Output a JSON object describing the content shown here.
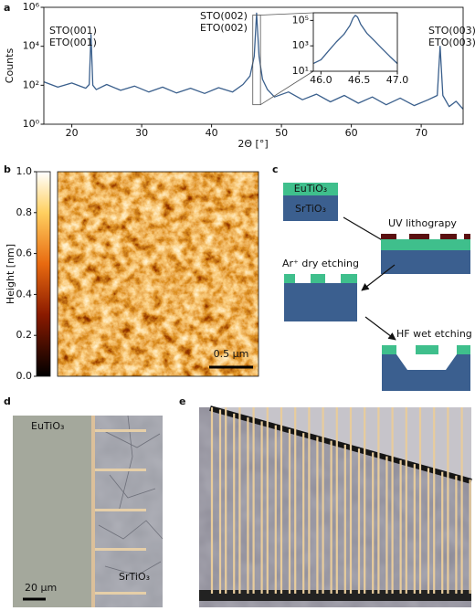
{
  "chart_data": [
    {
      "type": "line",
      "x_label": "2Θ [°]",
      "y_label": "Counts",
      "log_y": true,
      "color": "#3a5f8c",
      "x": [
        16,
        18,
        20,
        22,
        22.5,
        22.75,
        23,
        23.5,
        25,
        27,
        29,
        31,
        33,
        35,
        37,
        39,
        41,
        43,
        44.5,
        45.5,
        46.1,
        46.45,
        46.8,
        47.3,
        48,
        49,
        51,
        53,
        55,
        57,
        59,
        61,
        63,
        65,
        67,
        69,
        71,
        72.3,
        72.7,
        73.1,
        74,
        75,
        76
      ],
      "values": [
        150,
        80,
        130,
        70,
        110,
        40000,
        100,
        60,
        110,
        55,
        90,
        45,
        80,
        40,
        70,
        38,
        75,
        45,
        110,
        300,
        3000,
        500000,
        3000,
        200,
        60,
        25,
        45,
        18,
        35,
        14,
        30,
        12,
        25,
        10,
        22,
        9,
        18,
        30,
        10000,
        30,
        8,
        15,
        6
      ],
      "xlim": [
        16,
        76
      ],
      "ylim": [
        1,
        1000000
      ],
      "xticks": [
        20,
        30,
        40,
        50,
        60,
        70
      ],
      "yticks": [
        {
          "value": 1,
          "label": "10⁰"
        },
        {
          "value": 100,
          "label": "10²"
        },
        {
          "value": 10000,
          "label": "10⁴"
        },
        {
          "value": 1000000,
          "label": "10⁶"
        }
      ],
      "annotations": [
        "STO(001)",
        "ETO(001)",
        "STO(002)",
        "ETO(002)",
        "STO(003)",
        "ETO(003)"
      ]
    },
    {
      "type": "line",
      "log_y": true,
      "color": "#3a5f8c",
      "x": [
        45.9,
        46.0,
        46.1,
        46.2,
        46.3,
        46.38,
        46.42,
        46.45,
        46.48,
        46.52,
        46.6,
        46.7,
        46.8,
        46.9,
        47.0
      ],
      "values": [
        40,
        80,
        400,
        2000,
        8000,
        40000,
        150000,
        250000,
        180000,
        50000,
        10000,
        2500,
        600,
        150,
        40
      ],
      "xlim": [
        45.9,
        47.0
      ],
      "ylim": [
        10,
        400000
      ],
      "xticks": [
        {
          "value": 46,
          "label": "46.0"
        },
        46.5,
        {
          "value": 47,
          "label": "47.0"
        }
      ],
      "yticks": [
        {
          "value": 10,
          "label": "10¹"
        },
        {
          "value": 1000,
          "label": "10³"
        },
        {
          "value": 100000,
          "label": "10⁵"
        }
      ]
    },
    {
      "type": "colorbar",
      "y_label": "Height [nm]",
      "ylim": [
        0,
        1
      ],
      "yticks": [
        {
          "value": 0,
          "label": "0.0"
        },
        0.2,
        0.4,
        0.6,
        0.8,
        {
          "value": 1,
          "label": "1.0"
        }
      ]
    }
  ],
  "figure": {
    "panel_labels": [
      "a",
      "b",
      "c",
      "d",
      "e"
    ],
    "afm_scale_bar": "0.5 µm",
    "schematic": {
      "layer_top": "EuTiO₃",
      "layer_bottom": "SrTiO₃",
      "steps": [
        "UV lithograpy",
        "Ar⁺ dry etching",
        "HF wet etching"
      ]
    },
    "micrograph_d": {
      "film": "EuTiO₃",
      "substrate": "SrTiO₃",
      "scale_bar": "20 µm"
    }
  }
}
